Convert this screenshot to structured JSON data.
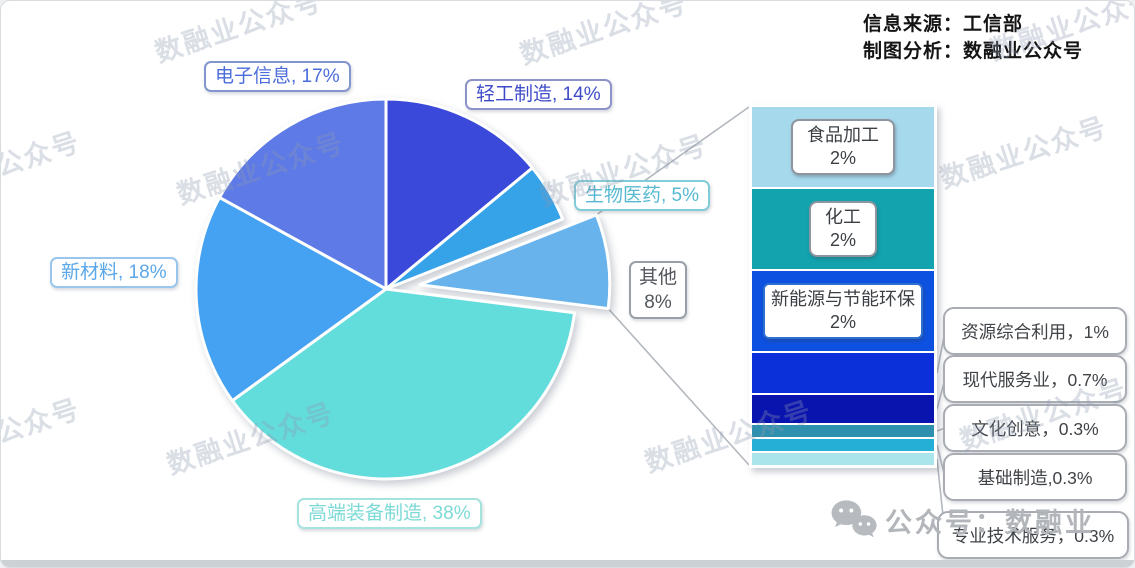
{
  "header": {
    "source_line1": "信息来源：工信部",
    "source_line2": "制图分析：数融业公众号"
  },
  "watermark": {
    "text": "数融业公众号"
  },
  "footer": {
    "account_text": "公众号：数融业"
  },
  "chart_data": {
    "type": "pie",
    "subtype": "bar-of-pie",
    "title": "",
    "pie": {
      "start_angle": "12-oclock, clockwise",
      "slices": [
        {
          "label": "轻工制造",
          "value": 14,
          "color": "#3a49d9",
          "exploded": false,
          "callout": "轻工制造, 14%",
          "callout_text_color": "#3f4cc9",
          "callout_border_color": "#8d93c9"
        },
        {
          "label": "生物医药",
          "value": 5,
          "color": "#36a2e7",
          "exploded": false,
          "callout": "生物医药, 5%",
          "callout_text_color": "#57b9d1",
          "callout_border_color": "#82ccd8"
        },
        {
          "label": "其他",
          "value": 8,
          "color": "#68b3ec",
          "exploded": true,
          "callout": "其他\n8%",
          "callout_text_color": "#53575d",
          "callout_border_color": "#989fa8"
        },
        {
          "label": "高端装备制造",
          "value": 38,
          "color": "#63dcdc",
          "exploded": false,
          "callout": "高端装备制造, 38%",
          "callout_text_color": "#7cdad6",
          "callout_border_color": "#a5e3df"
        },
        {
          "label": "新材料",
          "value": 18,
          "color": "#45a1f1",
          "exploded": false,
          "callout": "新材料, 18%",
          "callout_text_color": "#5aa7e9",
          "callout_border_color": "#9ac6ec"
        },
        {
          "label": "电子信息",
          "value": 17,
          "color": "#5d7ae6",
          "exploded": false,
          "callout": "电子信息, 17%",
          "callout_text_color": "#4b6cdb",
          "callout_border_color": "#8295cf"
        }
      ]
    },
    "bar": {
      "segments": [
        {
          "label": "食品加工",
          "value": 2,
          "color": "#a6d9ec",
          "box": "gray",
          "box_text": "食品加工\n2%"
        },
        {
          "label": "化工",
          "value": 2,
          "color": "#13a3af",
          "box": "gray",
          "box_text": "化工\n2%"
        },
        {
          "label": "新能源与节能环保",
          "value": 2,
          "color": "#0d51e0",
          "box": "blue",
          "box_text": "新能源与节能环保\n2%"
        },
        {
          "label": "资源综合利用",
          "value": 1,
          "color": "#0b2fd9",
          "box": "none",
          "box_text": ""
        },
        {
          "label": "现代服务业",
          "value": 0.7,
          "color": "#0913ae",
          "box": "none",
          "box_text": ""
        },
        {
          "label": "文化创意",
          "value": 0.3,
          "color": "#2f8fae",
          "box": "none",
          "box_text": ""
        },
        {
          "label": "基础制造",
          "value": 0.3,
          "color": "#25aed6",
          "box": "none",
          "box_text": ""
        },
        {
          "label": "专业技术服务",
          "value": 0.3,
          "color": "#abe5ec",
          "box": "none",
          "box_text": ""
        }
      ],
      "callouts": [
        {
          "text": "资源综合利用，1%"
        },
        {
          "text": "现代服务业，0.7%"
        },
        {
          "text": "文化创意，0.3%"
        },
        {
          "text": "基础制造,0.3%"
        },
        {
          "text": "专业技术服务，0.3%"
        }
      ]
    }
  }
}
